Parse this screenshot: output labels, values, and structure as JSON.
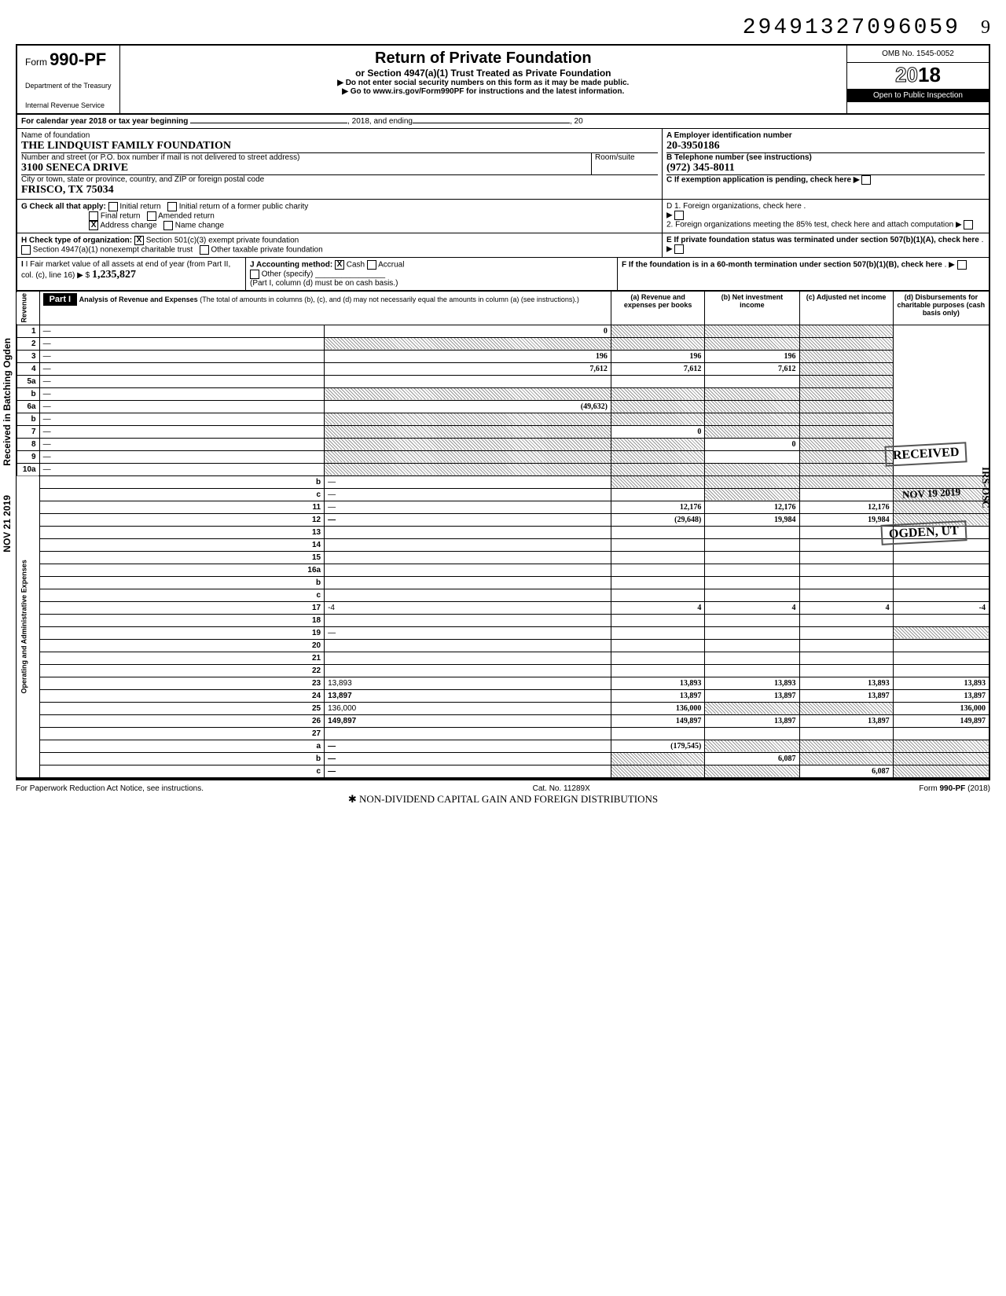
{
  "page_number": "9",
  "document_id": "29491327096059",
  "header": {
    "form_prefix": "Form",
    "form_number": "990-PF",
    "dept1": "Department of the Treasury",
    "dept2": "Internal Revenue Service",
    "title": "Return of Private Foundation",
    "subtitle": "or Section 4947(a)(1) Trust Treated as Private Foundation",
    "warn": "▶ Do not enter social security numbers on this form as it may be made public.",
    "goto": "▶ Go to www.irs.gov/Form990PF for instructions and the latest information.",
    "omb": "OMB No. 1545-0052",
    "year_prefix": "20",
    "year_suffix": "18",
    "inspect": "Open to Public Inspection"
  },
  "cal_line": {
    "prefix": "For calendar year 2018 or tax year beginning",
    "mid": ", 2018, and ending",
    "suffix": ", 20"
  },
  "id_block": {
    "name_label": "Name of foundation",
    "name_val": "THE LINDQUIST FAMILY FOUNDATION",
    "addr_label": "Number and street (or P.O. box number if mail is not delivered to street address)",
    "addr_val": "3100 SENECA DRIVE",
    "room_label": "Room/suite",
    "city_label": "City or town, state or province, country, and ZIP or foreign postal code",
    "city_val": "FRISCO, TX 75034",
    "a_label": "A Employer identification number",
    "a_val": "20-3950186",
    "b_label": "B Telephone number (see instructions)",
    "b_val": "(972) 345-8011",
    "c_label": "C If exemption application is pending, check here ▶"
  },
  "g_block": {
    "label": "G Check all that apply:",
    "opts": [
      "Initial return",
      "Initial return of a former public charity",
      "Final return",
      "Amended return",
      "Address change",
      "Name change"
    ],
    "checked": "Address change",
    "d1": "D 1. Foreign organizations, check here .",
    "d2": "2. Foreign organizations meeting the 85% test, check here and attach computation",
    "e": "E If private foundation status was terminated under section 507(b)(1)(A), check here"
  },
  "h_block": {
    "label": "H Check type of organization:",
    "opt1": "Section 501(c)(3) exempt private foundation",
    "opt2": "Section 4947(a)(1) nonexempt charitable trust",
    "opt3": "Other taxable private foundation"
  },
  "i_block": {
    "label": "I Fair market value of all assets at end of year (from Part II, col. (c), line 16) ▶ $",
    "val": "1,235,827"
  },
  "j_block": {
    "label": "J Accounting method:",
    "cash": "Cash",
    "accrual": "Accrual",
    "other": "Other (specify)",
    "note": "(Part I, column (d) must be on cash basis.)"
  },
  "f_block": {
    "text": "F If the foundation is in a 60-month termination under section 507(b)(1)(B), check here"
  },
  "part1_header": {
    "label": "Part I",
    "title": "Analysis of Revenue and Expenses",
    "note": "(The total of amounts in columns (b), (c), and (d) may not necessarily equal the amounts in column (a) (see instructions).)",
    "col_a": "(a) Revenue and expenses per books",
    "col_b": "(b) Net investment income",
    "col_c": "(c) Adjusted net income",
    "col_d": "(d) Disbursements for charitable purposes (cash basis only)"
  },
  "side_labels": {
    "received": "Received in Batching Ogden",
    "date": "NOV 21 2019",
    "revenue": "Revenue",
    "expenses": "Operating and Administrative Expenses"
  },
  "stamps": {
    "received": "RECEIVED",
    "irs_osc": "IRS-OSC",
    "nov": "NOV 19 2019",
    "ogden": "OGDEN, UT"
  },
  "lines": [
    {
      "n": "1",
      "d": "—",
      "a": "0",
      "b": "—",
      "c": "—",
      "shade_b": true,
      "shade_c": true,
      "shade_d": true
    },
    {
      "n": "2",
      "d": "—",
      "a": "—",
      "b": "—",
      "c": "—",
      "shade_a": true,
      "shade_b": true,
      "shade_c": true,
      "shade_d": true
    },
    {
      "n": "3",
      "d": "—",
      "a": "196",
      "b": "196",
      "c": "196",
      "shade_d": true
    },
    {
      "n": "4",
      "d": "—",
      "a": "7,612",
      "b": "7,612",
      "c": "7,612",
      "shade_d": true
    },
    {
      "n": "5a",
      "d": "—",
      "a": "",
      "b": "",
      "c": "",
      "shade_d": true
    },
    {
      "n": "b",
      "d": "—",
      "a": "—",
      "b": "—",
      "c": "—",
      "shade_a": true,
      "shade_b": true,
      "shade_c": true,
      "shade_d": true
    },
    {
      "n": "6a",
      "d": "—",
      "a": "(49,632)",
      "b": "—",
      "c": "—",
      "shade_b": true,
      "shade_c": true,
      "shade_d": true
    },
    {
      "n": "b",
      "d": "—",
      "a": "—",
      "b": "—",
      "c": "—",
      "shade_a": true,
      "shade_b": true,
      "shade_c": true,
      "shade_d": true
    },
    {
      "n": "7",
      "d": "—",
      "a": "—",
      "b": "0",
      "c": "—",
      "shade_a": true,
      "shade_c": true,
      "shade_d": true
    },
    {
      "n": "8",
      "d": "—",
      "a": "—",
      "b": "—",
      "c": "0",
      "shade_a": true,
      "shade_b": true,
      "shade_d": true
    },
    {
      "n": "9",
      "d": "—",
      "a": "—",
      "b": "—",
      "c": "",
      "shade_a": true,
      "shade_b": true,
      "shade_d": true
    },
    {
      "n": "10a",
      "d": "—",
      "a": "—",
      "b": "—",
      "c": "—",
      "shade_a": true,
      "shade_b": true,
      "shade_c": true,
      "shade_d": true
    },
    {
      "n": "b",
      "d": "—",
      "a": "—",
      "b": "—",
      "c": "—",
      "shade_a": true,
      "shade_b": true,
      "shade_c": true,
      "shade_d": true
    },
    {
      "n": "c",
      "d": "—",
      "a": "",
      "b": "—",
      "c": "",
      "shade_b": true,
      "shade_d": true
    },
    {
      "n": "11",
      "d": "—",
      "a": "12,176",
      "b": "12,176",
      "c": "12,176",
      "shade_d": true
    },
    {
      "n": "12",
      "d": "—",
      "a": "(29,648)",
      "b": "19,984",
      "c": "19,984",
      "shade_d": true,
      "bold": true
    },
    {
      "n": "13",
      "d": "",
      "a": "",
      "b": "",
      "c": ""
    },
    {
      "n": "14",
      "d": "",
      "a": "",
      "b": "",
      "c": ""
    },
    {
      "n": "15",
      "d": "",
      "a": "",
      "b": "",
      "c": ""
    },
    {
      "n": "16a",
      "d": "",
      "a": "",
      "b": "",
      "c": ""
    },
    {
      "n": "b",
      "d": "",
      "a": "",
      "b": "",
      "c": ""
    },
    {
      "n": "c",
      "d": "",
      "a": "",
      "b": "",
      "c": ""
    },
    {
      "n": "17",
      "d": "-4",
      "a": "4",
      "b": "4",
      "c": "4"
    },
    {
      "n": "18",
      "d": "",
      "a": "",
      "b": "",
      "c": ""
    },
    {
      "n": "19",
      "d": "—",
      "a": "",
      "b": "",
      "c": "",
      "shade_d": true
    },
    {
      "n": "20",
      "d": "",
      "a": "",
      "b": "",
      "c": ""
    },
    {
      "n": "21",
      "d": "",
      "a": "",
      "b": "",
      "c": ""
    },
    {
      "n": "22",
      "d": "",
      "a": "",
      "b": "",
      "c": ""
    },
    {
      "n": "23",
      "d": "13,893",
      "a": "13,893",
      "b": "13,893",
      "c": "13,893"
    },
    {
      "n": "24",
      "d": "13,897",
      "a": "13,897",
      "b": "13,897",
      "c": "13,897",
      "bold": true
    },
    {
      "n": "25",
      "d": "136,000",
      "a": "136,000",
      "b": "—",
      "c": "—",
      "shade_b": true,
      "shade_c": true
    },
    {
      "n": "26",
      "d": "149,897",
      "a": "149,897",
      "b": "13,897",
      "c": "13,897",
      "bold": true
    },
    {
      "n": "27",
      "d": "",
      "a": "",
      "b": "",
      "c": ""
    },
    {
      "n": "a",
      "d": "—",
      "a": "(179,545)",
      "b": "—",
      "c": "—",
      "shade_b": true,
      "shade_c": true,
      "shade_d": true,
      "bold": true
    },
    {
      "n": "b",
      "d": "—",
      "a": "—",
      "b": "6,087",
      "c": "—",
      "shade_a": true,
      "shade_c": true,
      "shade_d": true,
      "bold": true
    },
    {
      "n": "c",
      "d": "—",
      "a": "—",
      "b": "—",
      "c": "6,087",
      "shade_a": true,
      "shade_b": true,
      "shade_d": true,
      "bold": true
    }
  ],
  "footer": {
    "left": "For Paperwork Reduction Act Notice, see instructions.",
    "mid": "Cat. No. 11289X",
    "right": "Form 990-PF (2018)"
  },
  "annotation": "✱ NON-DIVIDEND CAPITAL GAIN AND FOREIGN DISTRIBUTIONS"
}
